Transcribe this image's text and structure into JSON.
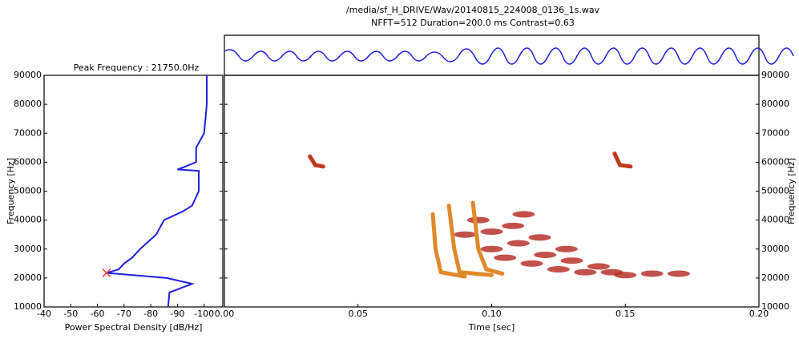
{
  "chart_data": [
    {
      "type": "psd",
      "title": "Peak Frequency : 21750.0Hz",
      "x_label": "Power Spectral Density [dB/Hz]",
      "y_label": "Frequency [Hz]",
      "xlim": [
        -40,
        -107
      ],
      "xticks": [
        -40,
        -50,
        -60,
        -70,
        -80,
        -90,
        -100
      ],
      "ylim": [
        10000,
        90000
      ],
      "yticks": [
        10000,
        20000,
        30000,
        40000,
        50000,
        60000,
        70000,
        80000,
        90000
      ],
      "color": "#1f1fe0",
      "y": [
        90000,
        80000,
        70000,
        65000,
        60000,
        58500,
        57500,
        57000,
        50000,
        45000,
        43000,
        40000,
        35000,
        30000,
        27000,
        25000,
        23000,
        21750,
        20000,
        18000,
        15000,
        10000
      ],
      "values": [
        -101,
        -101,
        -100,
        -97,
        -97,
        -93,
        -90,
        -98,
        -98,
        -95.5,
        -92,
        -85,
        -82,
        -76,
        -73,
        -70,
        -68,
        -63.4,
        -86,
        -95.5,
        -87,
        -86.5
      ],
      "peak": {
        "x": -63.4,
        "y": 21750,
        "color": "#ff4040"
      }
    },
    {
      "type": "spectrogram",
      "title": "/media/sf_H_DRIVE/Wav/20140815_224008_0136_1s.wav",
      "subtitle": "NFFT=512 Duration=200.0 ms Contrast=0.63",
      "x_label": "Time [sec]",
      "y_label": "Frequency [Hz]",
      "xlim": [
        0,
        0.2
      ],
      "xticks": [
        {
          "value": 0,
          "label": "0.00"
        },
        {
          "value": 0.05,
          "label": "0.05"
        },
        {
          "value": 0.1,
          "label": "0.10"
        },
        {
          "value": 0.15,
          "label": "0.15"
        },
        {
          "value": 0.2,
          "label": "0.20"
        }
      ],
      "ylim": [
        10000,
        90000
      ],
      "yticks": [
        10000,
        20000,
        30000,
        40000,
        50000,
        60000,
        70000,
        80000,
        90000
      ],
      "series": [
        {
          "color": "#c0381c",
          "x": [
            0.032,
            0.034,
            0.037
          ],
          "values": [
            62000,
            59000,
            58500
          ]
        },
        {
          "color": "#c0381c",
          "x": [
            0.146,
            0.148,
            0.152
          ],
          "values": [
            63000,
            59000,
            58500
          ]
        },
        {
          "color": "#e0892a",
          "x": [
            0.078,
            0.079,
            0.081,
            0.09
          ],
          "values": [
            42000,
            30000,
            22000,
            20500
          ]
        },
        {
          "color": "#e0892a",
          "x": [
            0.084,
            0.086,
            0.088,
            0.1
          ],
          "values": [
            45000,
            30000,
            22000,
            21000
          ]
        },
        {
          "color": "#e0892a",
          "x": [
            0.093,
            0.095,
            0.098,
            0.104
          ],
          "values": [
            46000,
            30000,
            23000,
            21500
          ]
        }
      ],
      "cloud": {
        "color": "#b3261e",
        "x": [
          0.1,
          0.105,
          0.11,
          0.115,
          0.12,
          0.125,
          0.13,
          0.135,
          0.14,
          0.145,
          0.15,
          0.16,
          0.17,
          0.1,
          0.108,
          0.118,
          0.128,
          0.09,
          0.095,
          0.112
        ],
        "values": [
          30000,
          27000,
          32000,
          25000,
          28000,
          23000,
          26000,
          22000,
          24000,
          22000,
          21000,
          21500,
          21500,
          36000,
          38000,
          34000,
          30000,
          35000,
          40000,
          42000
        ]
      }
    }
  ]
}
